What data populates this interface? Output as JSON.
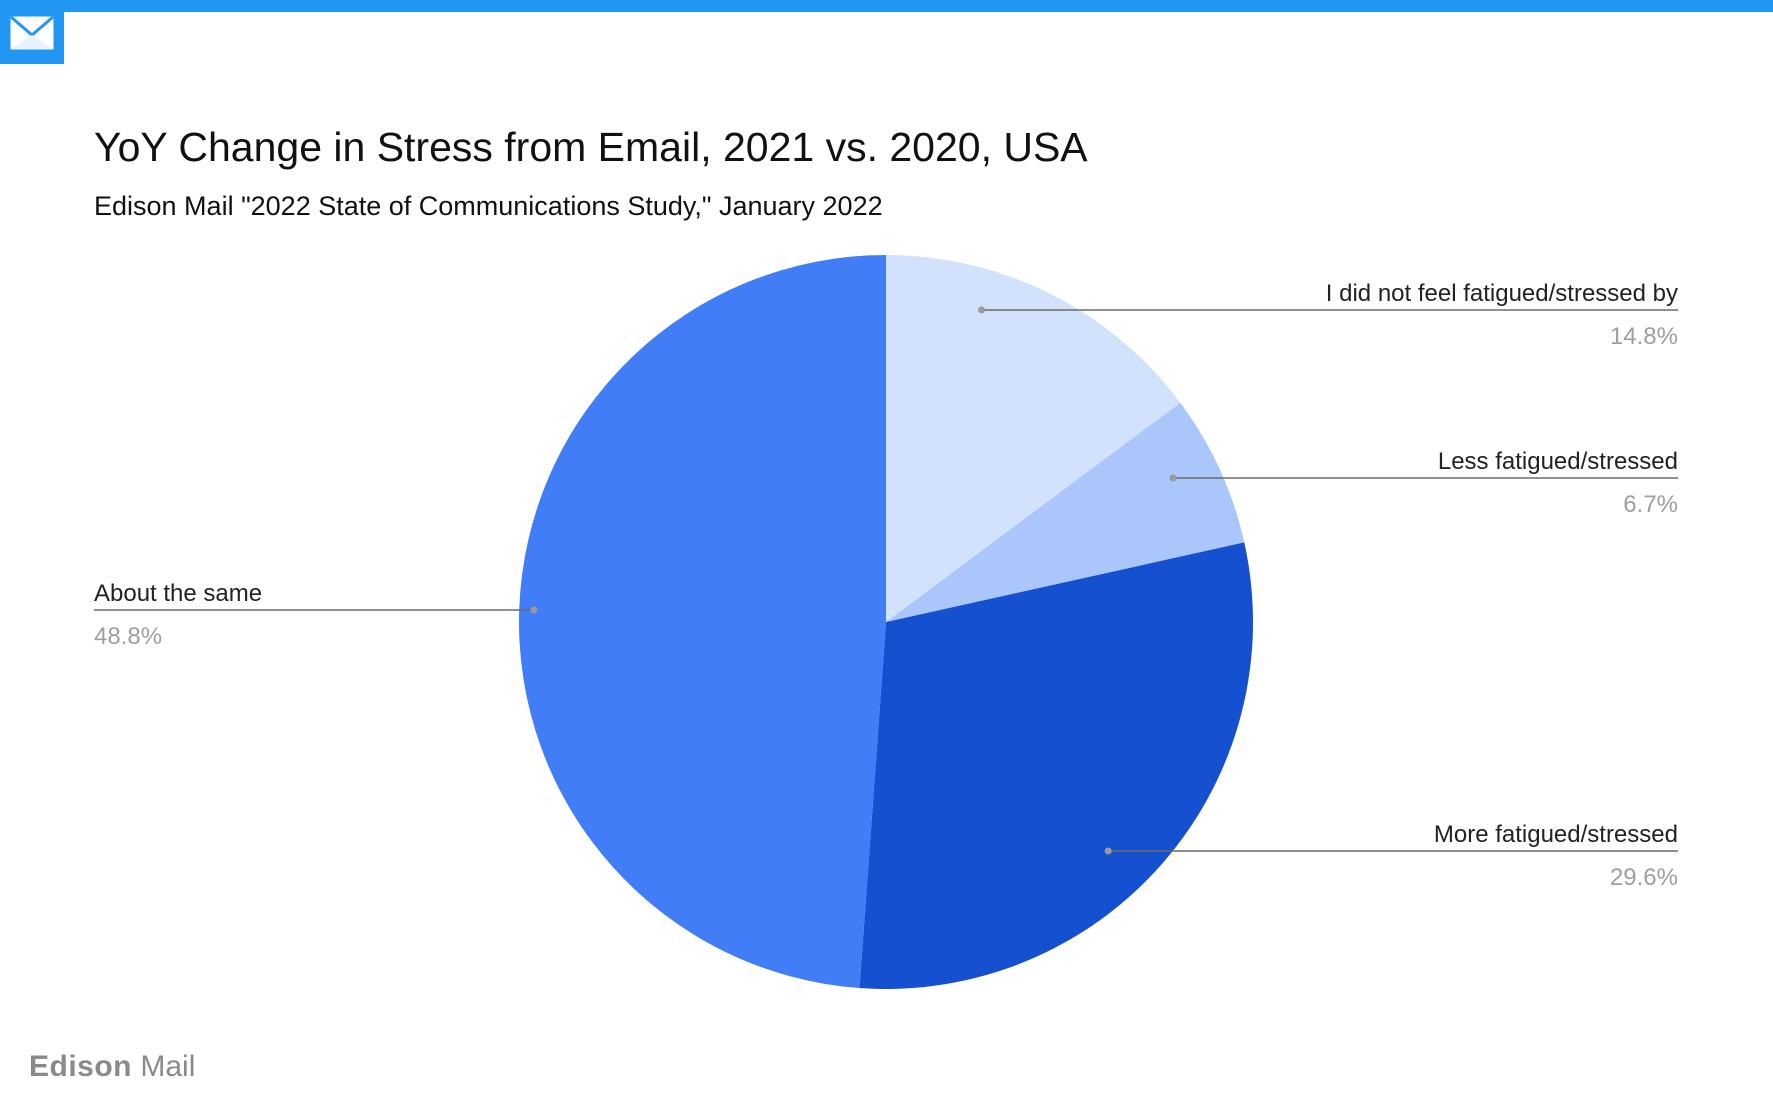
{
  "header": {
    "accent_color": "#2196f3",
    "icon": "envelope-icon"
  },
  "chart_data": {
    "type": "pie",
    "title": "YoY Change in Stress from Email, 2021 vs. 2020, USA",
    "subtitle": "Edison Mail \"2022 State of Communications Study,\" January 2022",
    "slices": [
      {
        "label": "I did not feel fatigued/stressed by",
        "value": 14.8,
        "value_label": "14.8%",
        "color": "#d3e2fc"
      },
      {
        "label": "Less fatigued/stressed",
        "value": 6.7,
        "value_label": "6.7%",
        "color": "#aac6fb"
      },
      {
        "label": "More fatigued/stressed",
        "value": 29.6,
        "value_label": "29.6%",
        "color": "#1550d1"
      },
      {
        "label": "About the same",
        "value": 48.8,
        "value_label": "48.8%",
        "color": "#427df8"
      }
    ],
    "start": "12 o'clock",
    "direction": "clockwise",
    "legend": "callout labels"
  },
  "footer": {
    "brand": "Edison",
    "product": "Mail"
  }
}
